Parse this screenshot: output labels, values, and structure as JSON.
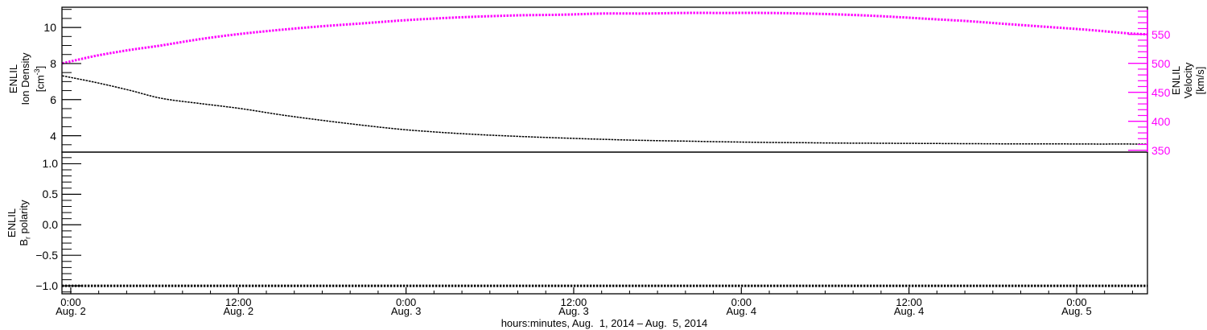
{
  "figure": {
    "background": "#ffffff",
    "axis_color": "#000000",
    "velocity_color": "#ff00ff",
    "density_color": "#000000",
    "polarity_color": "#000000"
  },
  "labels": {
    "density_axis": {
      "l1": "ENLIL",
      "l2": "Ion Density",
      "unit_pre": "[cm",
      "unit_sup": "-3",
      "unit_post": "]"
    },
    "velocity_axis": {
      "l1": "ENLIL",
      "l2": "Velocity",
      "l3": "[km/s]"
    },
    "polarity_axis": {
      "l1": "ENLIL",
      "b": "B",
      "sub": "r",
      "rest": " polarity"
    },
    "x_title": "hours:minutes, Aug.  1, 2014 – Aug.  5, 2014"
  },
  "chart_data": {
    "type": "line",
    "title": "",
    "x_axis": {
      "label": "hours:minutes, Aug.  1, 2014 – Aug.  5, 2014",
      "units_hours_since": "Aug. 1, 2014 00:00",
      "range_hours": [
        23.37,
        101.07
      ],
      "minor_tick_step_hours": 2,
      "major_ticks": [
        {
          "hours": 24,
          "time": "0:00",
          "date": "Aug. 2"
        },
        {
          "hours": 36,
          "time": "12:00",
          "date": "Aug. 2"
        },
        {
          "hours": 48,
          "time": "0:00",
          "date": "Aug. 3"
        },
        {
          "hours": 60,
          "time": "12:00",
          "date": "Aug. 3"
        },
        {
          "hours": 72,
          "time": "0:00",
          "date": "Aug. 4"
        },
        {
          "hours": 84,
          "time": "12:00",
          "date": "Aug. 4"
        },
        {
          "hours": 96,
          "time": "0:00",
          "date": "Aug. 5"
        }
      ]
    },
    "panels": [
      {
        "id": "density-velocity",
        "left_axis": {
          "title": "ENLIL Ion Density [cm-3]",
          "color": "#000000",
          "range": [
            3.09,
            11.12
          ],
          "major_ticks": [
            4,
            6,
            8,
            10
          ],
          "major_tick_labels": [
            "4",
            "6",
            "8",
            "10"
          ],
          "minor_step": 0.5
        },
        "right_axis": {
          "title": "ENLIL Velocity [km/s]",
          "color": "#ff00ff",
          "range": [
            346.8,
            596.8
          ],
          "major_ticks": [
            350,
            400,
            450,
            500,
            550
          ],
          "major_tick_labels": [
            "350",
            "400",
            "450",
            "500",
            "550"
          ],
          "minor_step": 10
        },
        "series": [
          {
            "name": "ion_density",
            "axis": "left",
            "color": "#000000",
            "marker_style": "dense-dots",
            "x_hours": [
              23.4,
              25.8,
              28.2,
              30.5,
              33.3,
              36.2,
              39.1,
              42.0,
              44.9,
              47.7,
              50.6,
              53.5,
              56.4,
              59.3,
              62.1,
              65.0,
              67.9,
              70.8,
              73.7,
              76.5,
              79.4,
              82.3,
              85.2,
              88.1,
              90.9,
              93.8,
              96.7,
              99.6,
              101.1
            ],
            "values": [
              7.32,
              6.95,
              6.52,
              6.07,
              5.78,
              5.5,
              5.15,
              4.85,
              4.58,
              4.35,
              4.18,
              4.05,
              3.95,
              3.87,
              3.8,
              3.74,
              3.7,
              3.66,
              3.63,
              3.61,
              3.59,
              3.58,
              3.57,
              3.56,
              3.55,
              3.55,
              3.54,
              3.54,
              3.53
            ]
          },
          {
            "name": "velocity",
            "axis": "right",
            "color": "#ff00ff",
            "marker_style": "dense-plus",
            "x_hours": [
              23.4,
              25.8,
              28.2,
              30.5,
              33.3,
              36.2,
              39.1,
              42.0,
              44.9,
              47.7,
              50.6,
              53.5,
              56.4,
              59.3,
              62.1,
              65.0,
              67.9,
              70.8,
              73.7,
              76.5,
              79.4,
              82.3,
              85.2,
              88.1,
              90.9,
              93.8,
              96.7,
              99.6,
              101.1
            ],
            "values": [
              500,
              513,
              523,
              531,
              542,
              551,
              558,
              564,
              569,
              574,
              578,
              581,
              583,
              584,
              586,
              586,
              587,
              587,
              587,
              586,
              584,
              581,
              577,
              573,
              568,
              563,
              558,
              552,
              550
            ]
          }
        ]
      },
      {
        "id": "br-polarity",
        "left_axis": {
          "title": "ENLIL Br polarity",
          "color": "#000000",
          "range": [
            -1.13,
            1.19
          ],
          "major_ticks": [
            1.0,
            0.5,
            0.0,
            -0.5,
            -1.0
          ],
          "major_tick_labels": [
            "1.0",
            "0.5",
            "0.0",
            "−0.5",
            "−1.0"
          ],
          "minor_step": 0.1
        },
        "series": [
          {
            "name": "br_polarity",
            "axis": "left",
            "color": "#000000",
            "marker_style": "dense-plus",
            "x_hours": [
              23.37,
              101.07
            ],
            "values": [
              -1.0,
              -1.0
            ]
          }
        ]
      }
    ]
  }
}
